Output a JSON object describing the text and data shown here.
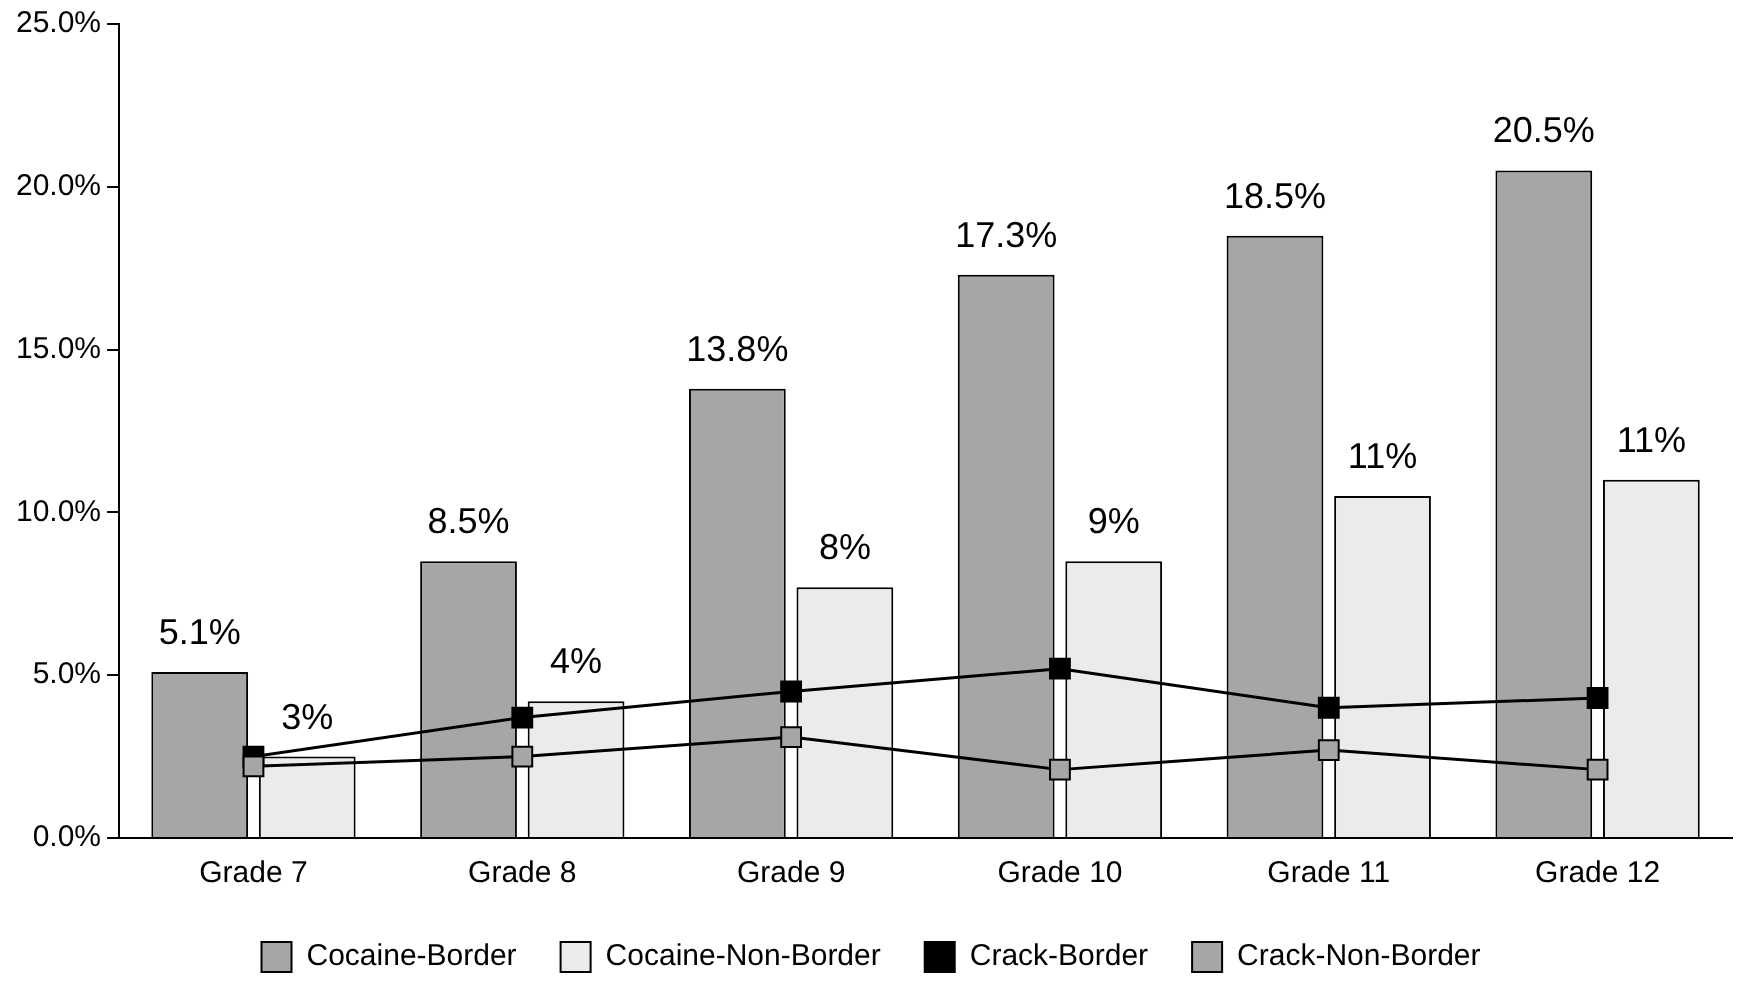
{
  "chart_data": {
    "type": "bar",
    "categories": [
      "Grade 7",
      "Grade 8",
      "Grade 9",
      "Grade 10",
      "Grade 11",
      "Grade 12"
    ],
    "series": [
      {
        "name": "Cocaine-Border",
        "color": "#a6a6a6",
        "values": [
          5.1,
          8.5,
          13.8,
          17.3,
          18.5,
          20.5
        ],
        "value_labels": [
          "5.1%",
          "8.5%",
          "13.8%",
          "17.3%",
          "18.5%",
          "20.5%"
        ]
      },
      {
        "name": "Cocaine-Non-Border",
        "color": "#ebebeb",
        "values": [
          2.5,
          4.2,
          7.7,
          8.5,
          10.5,
          11.0
        ],
        "value_labels": [
          "3%",
          "4%",
          "8%",
          "9%",
          "11%",
          "11%"
        ]
      },
      {
        "name": "Crack-Border",
        "type": "line",
        "color": "#000000",
        "values": [
          2.5,
          3.7,
          4.5,
          5.2,
          4.0,
          4.3
        ]
      },
      {
        "name": "Crack-Non-Border",
        "type": "line",
        "color": "#a6a6a6",
        "values": [
          2.2,
          2.5,
          3.1,
          2.1,
          2.7,
          2.1
        ]
      }
    ],
    "ylim": [
      0,
      25
    ],
    "yticks": [
      {
        "value": 0,
        "label": "0.0%"
      },
      {
        "value": 5,
        "label": "5.0%"
      },
      {
        "value": 10,
        "label": "10.0%"
      },
      {
        "value": 15,
        "label": "15.0%"
      },
      {
        "value": 20,
        "label": "20.0%"
      },
      {
        "value": 25,
        "label": "25.0%"
      }
    ],
    "grid": false,
    "legend": "bottom",
    "marker": "square"
  }
}
